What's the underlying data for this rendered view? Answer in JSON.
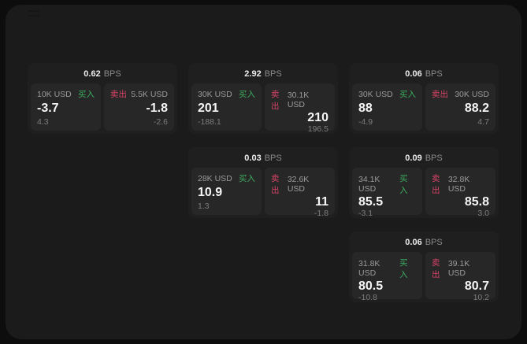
{
  "labels": {
    "buy": "买入",
    "sell": "卖出",
    "bps_unit": "BPS"
  },
  "colors": {
    "background": "#0d0d0d",
    "panel": "#1b1b1b",
    "card": "#1f1f1f",
    "subpanel": "#272727",
    "buy_green": "#3cab5f",
    "sell_red": "#d64467",
    "value_text": "#f5f5f5",
    "muted_text": "#8b8b8b"
  },
  "cards": [
    {
      "bps": "0.62",
      "buy": {
        "size": "10K USD",
        "price": "-3.7",
        "change": "4.3"
      },
      "sell": {
        "size": "5.5K USD",
        "price": "-1.8",
        "change": "-2.6"
      }
    },
    {
      "bps": "2.92",
      "buy": {
        "size": "30K USD",
        "price": "201",
        "change": "-188.1"
      },
      "sell": {
        "size": "30.1K USD",
        "price": "210",
        "change": "196.5"
      }
    },
    {
      "bps": "0.06",
      "buy": {
        "size": "30K USD",
        "price": "88",
        "change": "-4.9"
      },
      "sell": {
        "size": "30K USD",
        "price": "88.2",
        "change": "4.7"
      }
    },
    {
      "bps": "0.03",
      "buy": {
        "size": "28K USD",
        "price": "10.9",
        "change": "1.3"
      },
      "sell": {
        "size": "32.6K USD",
        "price": "11",
        "change": "-1.8"
      }
    },
    {
      "bps": "0.09",
      "buy": {
        "size": "34.1K USD",
        "price": "85.5",
        "change": "-3.1"
      },
      "sell": {
        "size": "32.8K USD",
        "price": "85.8",
        "change": "3.0"
      }
    },
    {
      "bps": "0.06",
      "buy": {
        "size": "31.8K USD",
        "price": "80.5",
        "change": "-10.8"
      },
      "sell": {
        "size": "39.1K USD",
        "price": "80.7",
        "change": "10.2"
      }
    }
  ]
}
